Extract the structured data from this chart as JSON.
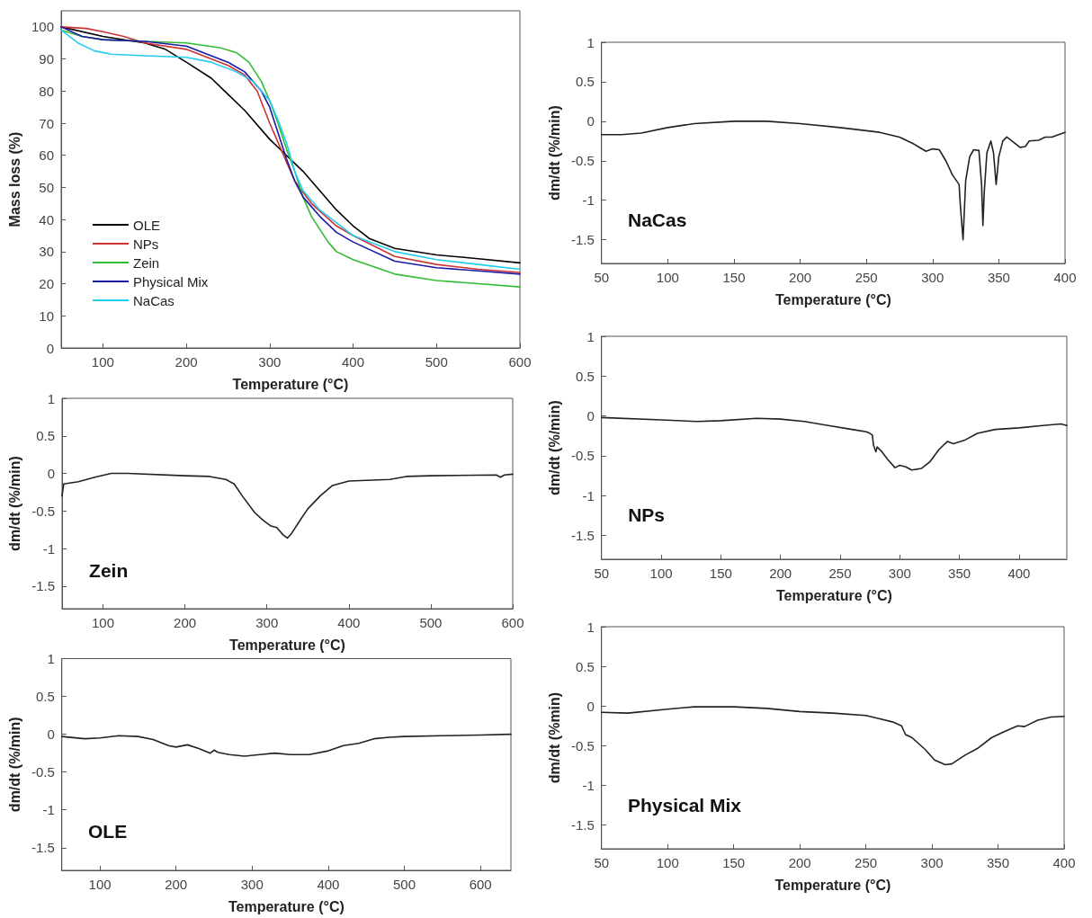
{
  "chart_data": [
    {
      "type": "line",
      "xlabel": "Temperature (°C)",
      "ylabel": "Mass loss (%)",
      "xlim": [
        50,
        600
      ],
      "xticks": [
        100,
        200,
        300,
        400,
        500,
        600
      ],
      "ylim": [
        0,
        105
      ],
      "yticks": [
        0,
        10,
        20,
        30,
        40,
        50,
        60,
        70,
        80,
        90,
        100
      ],
      "grid": false,
      "legend": "bottom left",
      "marker": "none",
      "line_style": "solid",
      "series": [
        {
          "name": "OLE",
          "color": "#000000",
          "x": [
            50,
            100,
            150,
            175,
            200,
            230,
            250,
            270,
            300,
            320,
            340,
            360,
            380,
            400,
            420,
            450,
            500,
            550,
            600
          ],
          "values": [
            100,
            97,
            95,
            93,
            89,
            84,
            79,
            74,
            65,
            60,
            55,
            49,
            43,
            38,
            34,
            31,
            29,
            27.8,
            26.5
          ]
        },
        {
          "name": "NPs",
          "color": "#cc3333",
          "x": [
            50,
            80,
            100,
            125,
            150,
            200,
            250,
            270,
            285,
            300,
            310,
            320,
            330,
            350,
            380,
            400,
            450,
            500,
            550,
            600
          ],
          "values": [
            100,
            99.5,
            98.5,
            97,
            95,
            93,
            88,
            85,
            80,
            70,
            64,
            58,
            52,
            45,
            38,
            35,
            28.5,
            26,
            24.5,
            23.5
          ]
        },
        {
          "name": "Zein",
          "color": "#33bb33",
          "x": [
            50,
            75,
            100,
            150,
            200,
            240,
            260,
            275,
            290,
            300,
            310,
            320,
            330,
            340,
            350,
            370,
            380,
            400,
            450,
            500,
            550,
            600
          ],
          "values": [
            99,
            97,
            96,
            95.5,
            95,
            93.5,
            92,
            89,
            83,
            77,
            70,
            62,
            55,
            47,
            41,
            33,
            30,
            27.5,
            23,
            21,
            20,
            19
          ]
        },
        {
          "name": "Physical Mix",
          "color": "#1a1aa6",
          "x": [
            50,
            75,
            100,
            150,
            200,
            250,
            270,
            290,
            300,
            310,
            320,
            330,
            340,
            360,
            380,
            400,
            450,
            500,
            550,
            600
          ],
          "values": [
            100,
            97,
            96,
            95.5,
            94,
            89,
            86,
            80,
            75,
            67,
            59,
            52,
            47,
            41,
            36,
            33,
            27,
            25,
            24,
            23
          ]
        },
        {
          "name": "NaCas",
          "color": "#22ccee",
          "x": [
            50,
            70,
            90,
            110,
            150,
            200,
            230,
            260,
            280,
            300,
            310,
            320,
            330,
            340,
            360,
            380,
            400,
            450,
            500,
            550,
            600
          ],
          "values": [
            99,
            95,
            92.5,
            91.5,
            91,
            90.5,
            89,
            86,
            83,
            77,
            71,
            64,
            55,
            49,
            43,
            39,
            35,
            30,
            27.5,
            26,
            24.5
          ]
        }
      ]
    },
    {
      "type": "line",
      "xlabel": "Temperature (°C)",
      "ylabel": "dm/dt (%/min)",
      "annotations": [
        "NaCas"
      ],
      "xlim": [
        50,
        400
      ],
      "xticks": [
        50,
        100,
        150,
        200,
        250,
        300,
        350,
        400
      ],
      "ylim": [
        -1.8,
        1
      ],
      "yticks": [
        -1.5,
        -1,
        -0.5,
        0,
        0.5,
        1
      ],
      "grid": false,
      "marker": "none",
      "line_style": "solid",
      "series": [
        {
          "color": "#222222",
          "x": [
            50,
            65,
            80,
            100,
            120,
            150,
            175,
            200,
            230,
            260,
            275,
            285,
            295,
            300,
            305,
            310,
            315,
            320,
            321,
            323,
            325,
            328,
            331,
            335,
            337,
            338,
            339,
            341,
            344,
            346,
            348,
            350,
            353,
            356,
            360,
            366,
            370,
            373,
            380,
            385,
            390,
            400
          ],
          "values": [
            -0.17,
            -0.17,
            -0.15,
            -0.08,
            -0.03,
            0,
            0,
            -0.03,
            -0.08,
            -0.14,
            -0.2,
            -0.28,
            -0.38,
            -0.35,
            -0.36,
            -0.5,
            -0.68,
            -0.8,
            -1.07,
            -1.5,
            -0.75,
            -0.45,
            -0.36,
            -0.37,
            -0.8,
            -1.32,
            -0.9,
            -0.4,
            -0.25,
            -0.4,
            -0.8,
            -0.45,
            -0.25,
            -0.2,
            -0.25,
            -0.33,
            -0.32,
            -0.25,
            -0.24,
            -0.2,
            -0.2,
            -0.14
          ]
        }
      ]
    },
    {
      "type": "line",
      "xlabel": "Temperature (°C)",
      "ylabel": "dm/dt (%/min)",
      "annotations": [
        "Zein"
      ],
      "xlim": [
        50,
        600
      ],
      "xticks": [
        100,
        200,
        300,
        400,
        500,
        600
      ],
      "ylim": [
        -1.8,
        1
      ],
      "yticks": [
        -1.5,
        -1,
        -0.5,
        0,
        0.5,
        1
      ],
      "grid": false,
      "marker": "none",
      "line_style": "solid",
      "series": [
        {
          "color": "#222222",
          "x": [
            50,
            52,
            70,
            90,
            110,
            130,
            200,
            230,
            250,
            260,
            270,
            285,
            295,
            305,
            312,
            320,
            325,
            330,
            340,
            350,
            365,
            380,
            400,
            450,
            470,
            500,
            580,
            585,
            590,
            600
          ],
          "values": [
            -0.3,
            -0.14,
            -0.11,
            -0.05,
            0,
            0,
            -0.03,
            -0.04,
            -0.08,
            -0.14,
            -0.3,
            -0.52,
            -0.62,
            -0.7,
            -0.72,
            -0.82,
            -0.86,
            -0.8,
            -0.63,
            -0.47,
            -0.3,
            -0.16,
            -0.1,
            -0.08,
            -0.04,
            -0.03,
            -0.02,
            -0.05,
            -0.02,
            -0.01
          ]
        }
      ]
    },
    {
      "type": "line",
      "xlabel": "Temperature (°C)",
      "ylabel": "dm/dt (%/min)",
      "annotations": [
        "NPs"
      ],
      "xlim": [
        50,
        440
      ],
      "xticks": [
        50,
        100,
        150,
        200,
        250,
        300,
        350,
        400
      ],
      "ylim": [
        -1.8,
        1
      ],
      "yticks": [
        -1.5,
        -1,
        -0.5,
        0,
        0.5,
        1
      ],
      "grid": false,
      "marker": "none",
      "line_style": "solid",
      "series": [
        {
          "color": "#222222",
          "x": [
            50,
            100,
            130,
            150,
            180,
            200,
            220,
            240,
            260,
            272,
            275,
            277,
            278,
            280,
            281,
            285,
            290,
            296,
            300,
            305,
            310,
            318,
            325,
            333,
            340,
            345,
            355,
            365,
            380,
            400,
            420,
            435,
            440
          ],
          "values": [
            -0.02,
            -0.05,
            -0.07,
            -0.06,
            -0.03,
            -0.04,
            -0.07,
            -0.12,
            -0.17,
            -0.2,
            -0.22,
            -0.24,
            -0.37,
            -0.45,
            -0.39,
            -0.45,
            -0.55,
            -0.65,
            -0.62,
            -0.64,
            -0.68,
            -0.66,
            -0.58,
            -0.42,
            -0.32,
            -0.35,
            -0.3,
            -0.22,
            -0.17,
            -0.15,
            -0.12,
            -0.1,
            -0.12
          ]
        }
      ]
    },
    {
      "type": "line",
      "xlabel": "Temperature (°C)",
      "ylabel": "dm/dt (%/min)",
      "annotations": [
        "OLE"
      ],
      "xlim": [
        50,
        640
      ],
      "xticks": [
        100,
        200,
        300,
        400,
        500,
        600
      ],
      "ylim": [
        -1.8,
        1
      ],
      "yticks": [
        -1.5,
        -1,
        -0.5,
        0,
        0.5,
        1
      ],
      "grid": false,
      "marker": "none",
      "line_style": "solid",
      "series": [
        {
          "color": "#222222",
          "x": [
            50,
            80,
            100,
            125,
            150,
            170,
            190,
            200,
            215,
            230,
            245,
            250,
            255,
            270,
            290,
            310,
            330,
            350,
            375,
            400,
            420,
            440,
            460,
            480,
            500,
            550,
            600,
            640
          ],
          "values": [
            -0.03,
            -0.06,
            -0.05,
            -0.02,
            -0.03,
            -0.07,
            -0.15,
            -0.17,
            -0.14,
            -0.19,
            -0.25,
            -0.21,
            -0.24,
            -0.27,
            -0.29,
            -0.27,
            -0.25,
            -0.27,
            -0.27,
            -0.22,
            -0.15,
            -0.12,
            -0.06,
            -0.04,
            -0.03,
            -0.02,
            -0.01,
            0
          ]
        }
      ]
    },
    {
      "type": "line",
      "xlabel": "Temperature (°C)",
      "ylabel": "dm/dt (%min)",
      "annotations": [
        "Physical Mix"
      ],
      "xlim": [
        50,
        400
      ],
      "xticks": [
        50,
        100,
        150,
        200,
        250,
        300,
        350,
        400
      ],
      "ylim": [
        -1.8,
        1
      ],
      "yticks": [
        -1.5,
        -1,
        -0.5,
        0,
        0.5,
        1
      ],
      "grid": false,
      "marker": "none",
      "line_style": "solid",
      "series": [
        {
          "color": "#222222",
          "x": [
            50,
            70,
            100,
            120,
            150,
            175,
            200,
            225,
            250,
            260,
            270,
            277,
            280,
            285,
            295,
            302,
            310,
            315,
            325,
            335,
            345,
            355,
            365,
            370,
            380,
            390,
            400
          ],
          "values": [
            -0.08,
            -0.09,
            -0.04,
            -0.01,
            -0.01,
            -0.03,
            -0.07,
            -0.09,
            -0.12,
            -0.16,
            -0.2,
            -0.25,
            -0.36,
            -0.4,
            -0.55,
            -0.68,
            -0.74,
            -0.73,
            -0.62,
            -0.53,
            -0.4,
            -0.32,
            -0.25,
            -0.26,
            -0.18,
            -0.14,
            -0.13
          ]
        }
      ]
    }
  ]
}
